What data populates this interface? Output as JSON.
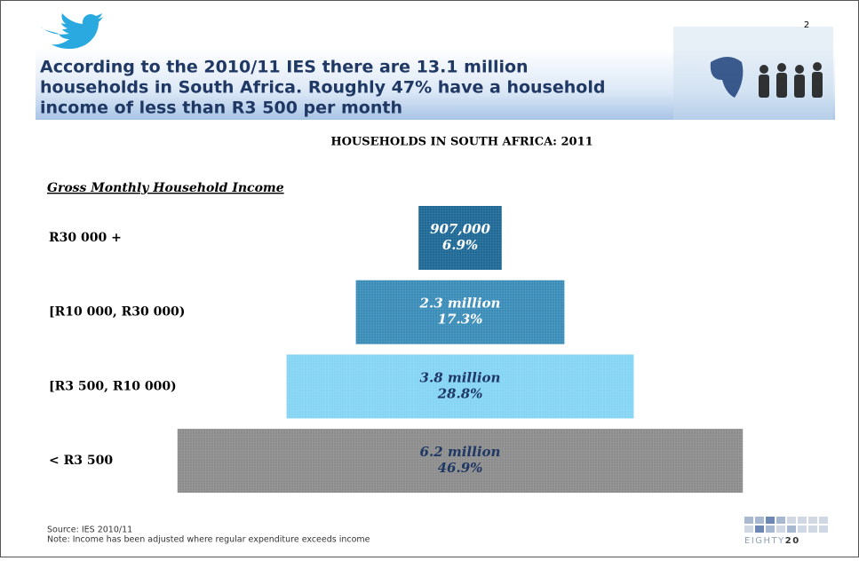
{
  "slide": {
    "title_lines": [
      "According to the 2010/11 IES there are 13.1 million",
      "households in South Africa. Roughly 47% have a household",
      "income of less than R3 500 per month"
    ],
    "page_number": 2,
    "source": "Source: IES 2010/11",
    "note": "Note: Income has been adjusted where regular expenditure exceeds income",
    "logo": [
      "EIGHTY",
      "20"
    ]
  },
  "chart_data": {
    "type": "pyramid",
    "title": "HOUSEHOLDS IN SOUTH AFRICA: 2011",
    "category_label": "Gross Monthly Household Income",
    "categories": [
      "R30 000 +",
      "[R10 000, R30 000)",
      "[R3 500, R10 000)",
      "< R3 500"
    ],
    "values": [
      6.9,
      17.3,
      28.8,
      46.9
    ],
    "value_labels": [
      "6.9%",
      "17.3%",
      "28.8%",
      "46.9%"
    ],
    "households": [
      907000,
      2300000,
      3800000,
      6200000
    ],
    "household_labels": [
      "907,000",
      "2.3 million",
      "3.8 million",
      "6.2 million"
    ],
    "colors": [
      "#1e6896",
      "#3a8cb8",
      "#84d4f4",
      "#8c8c8c"
    ],
    "label_colors": [
      "#ffffff",
      "#ffffff",
      "#1f3864",
      "#1f3864"
    ]
  }
}
